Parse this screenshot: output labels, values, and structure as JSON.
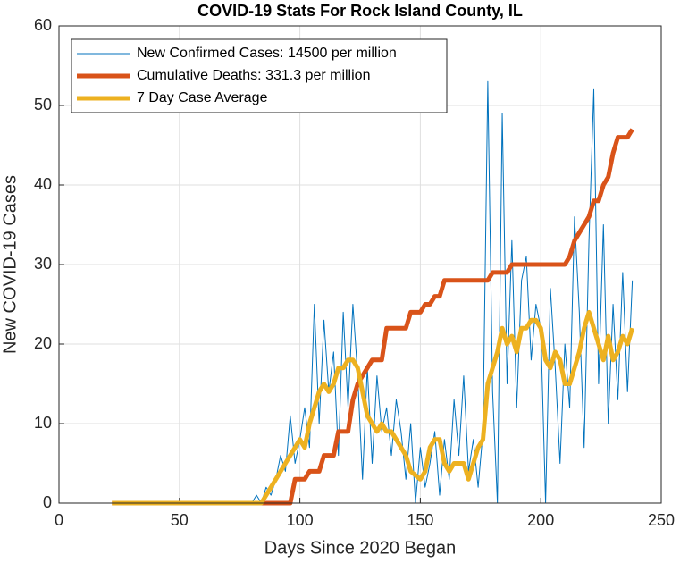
{
  "chart_data": {
    "type": "line",
    "title": "COVID-19 Stats For Rock Island County, IL",
    "xlabel": "Days Since 2020 Began",
    "ylabel": "New COVID-19 Cases",
    "x": [
      22,
      24,
      26,
      28,
      30,
      32,
      34,
      36,
      38,
      40,
      42,
      44,
      46,
      48,
      50,
      52,
      54,
      56,
      58,
      60,
      62,
      64,
      66,
      68,
      70,
      72,
      74,
      76,
      78,
      80,
      82,
      84,
      86,
      88,
      90,
      92,
      94,
      96,
      98,
      100,
      102,
      104,
      106,
      108,
      110,
      112,
      114,
      116,
      118,
      120,
      122,
      124,
      126,
      128,
      130,
      132,
      134,
      136,
      138,
      140,
      142,
      144,
      146,
      148,
      150,
      152,
      154,
      156,
      158,
      160,
      162,
      164,
      166,
      168,
      170,
      172,
      174,
      176,
      178,
      180,
      182,
      184,
      186,
      188,
      190,
      192,
      194,
      196,
      198,
      200,
      202,
      204,
      206,
      208,
      210,
      212,
      214,
      216,
      218,
      220,
      222,
      224,
      226,
      228,
      230,
      232,
      234,
      236,
      238
    ],
    "series": [
      {
        "name": "New Confirmed Cases: 14500 per million",
        "color": "#0072BD",
        "width": 1,
        "values": [
          0,
          0,
          0,
          0,
          0,
          0,
          0,
          0,
          0,
          0,
          0,
          0,
          0,
          0,
          0,
          0,
          0,
          0,
          0,
          0,
          0,
          0,
          0,
          0,
          0,
          0,
          0,
          0,
          0,
          0,
          1,
          0,
          2,
          1,
          3,
          6,
          4,
          11,
          5,
          8,
          12,
          7,
          25,
          10,
          23,
          14,
          19,
          6,
          24,
          12,
          25,
          16,
          3,
          17,
          5,
          16,
          9,
          12,
          6,
          13,
          9,
          3,
          10,
          0,
          7,
          2,
          5,
          9,
          1,
          8,
          3,
          13,
          6,
          16,
          4,
          8,
          2,
          9,
          53,
          14,
          0,
          49,
          15,
          33,
          12,
          28,
          31,
          18,
          25,
          22,
          0,
          27,
          17,
          5,
          20,
          12,
          36,
          24,
          7,
          33,
          52,
          15,
          35,
          10,
          25,
          13,
          29,
          14,
          28
        ]
      },
      {
        "name": "Cumulative Deaths: 331.3 per million",
        "color": "#D95319",
        "width": 5,
        "values": [
          0,
          0,
          0,
          0,
          0,
          0,
          0,
          0,
          0,
          0,
          0,
          0,
          0,
          0,
          0,
          0,
          0,
          0,
          0,
          0,
          0,
          0,
          0,
          0,
          0,
          0,
          0,
          0,
          0,
          0,
          0,
          0,
          0,
          0,
          0,
          0,
          0,
          0,
          3,
          3,
          3,
          4,
          4,
          4,
          6,
          6,
          6,
          9,
          9,
          9,
          13,
          15,
          16,
          17,
          18,
          18,
          18,
          22,
          22,
          22,
          22,
          22,
          24,
          24,
          24,
          25,
          25,
          26,
          26,
          28,
          28,
          28,
          28,
          28,
          28,
          28,
          28,
          28,
          28,
          29,
          29,
          29,
          29,
          30,
          30,
          30,
          30,
          30,
          30,
          30,
          30,
          30,
          30,
          30,
          30,
          31,
          33,
          34,
          35,
          36,
          38,
          38,
          40,
          41,
          44,
          46,
          46,
          46,
          47
        ]
      },
      {
        "name": "7 Day Case Average",
        "color": "#EDB120",
        "width": 5,
        "values": [
          0,
          0,
          0,
          0,
          0,
          0,
          0,
          0,
          0,
          0,
          0,
          0,
          0,
          0,
          0,
          0,
          0,
          0,
          0,
          0,
          0,
          0,
          0,
          0,
          0,
          0,
          0,
          0,
          0,
          0,
          0,
          0,
          1,
          2,
          3,
          4,
          5,
          6,
          7,
          8,
          7,
          10,
          12,
          14,
          15,
          14,
          15,
          17,
          17,
          18,
          18,
          17,
          14,
          11,
          10,
          9,
          10,
          9,
          9,
          8,
          7,
          6,
          4,
          3.5,
          3,
          4,
          7,
          8,
          8,
          5,
          4,
          5,
          5,
          5,
          3,
          5,
          7,
          8,
          15,
          17,
          19,
          22,
          20,
          21,
          19,
          22,
          22,
          23,
          23,
          22,
          18,
          17,
          19,
          18,
          15,
          15,
          17,
          19,
          22,
          24,
          22,
          20,
          18,
          21,
          18,
          19,
          21,
          20,
          22
        ]
      }
    ],
    "xlim": [
      0,
      250
    ],
    "xticks": [
      0,
      50,
      100,
      150,
      200,
      250
    ],
    "ylim": [
      0,
      60
    ],
    "yticks": [
      0,
      10,
      20,
      30,
      40,
      50,
      60
    ],
    "grid": true,
    "legend": "upper left"
  }
}
